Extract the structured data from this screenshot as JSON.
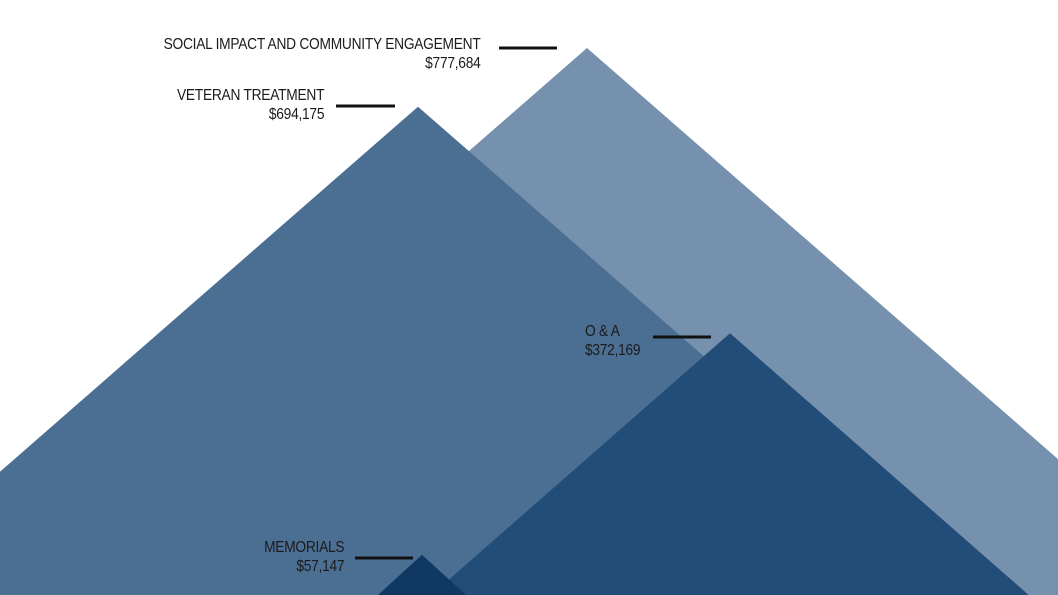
{
  "chart_data": {
    "type": "area",
    "title": "",
    "xlabel": "",
    "ylabel": "",
    "grid": false,
    "legend": "none",
    "ylim": [
      0,
      800000
    ],
    "series": [
      {
        "label": "SOCIAL IMPACT AND COMMUNITY ENGAGEMENT",
        "value_label": "$777,684",
        "value": 777684,
        "color": "#7591ad"
      },
      {
        "label": "VETERAN TREATMENT",
        "value_label": "$694,175",
        "value": 694175,
        "color": "#4b6e93"
      },
      {
        "label": "O & A",
        "value_label": "$372,169",
        "value": 372169,
        "color": "#234d79"
      },
      {
        "label": "MEMORIALS",
        "value_label": "$57,147",
        "value": 57147,
        "color": "#0f3863"
      }
    ]
  }
}
